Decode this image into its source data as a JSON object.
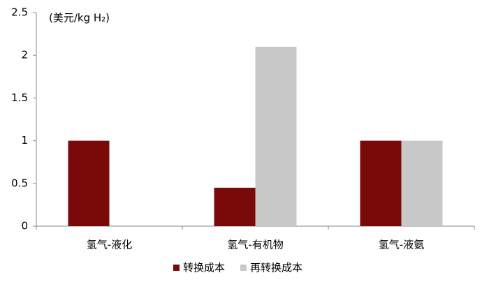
{
  "chart_data": {
    "type": "bar",
    "y_axis_label": "(美元/kg H₂)",
    "categories": [
      "氢气-液化",
      "氢气-有机物",
      "氢气-液氨"
    ],
    "series": [
      {
        "name": "转换成本",
        "color": "#7a0a0a",
        "values": [
          1,
          0.45,
          1
        ]
      },
      {
        "name": "再转换成本",
        "color": "#c8c8c8",
        "values": [
          0,
          2.1,
          1
        ]
      }
    ],
    "ylim": [
      0,
      2.5
    ],
    "yticks": [
      0,
      0.5,
      1,
      1.5,
      2,
      2.5
    ],
    "grid": false
  }
}
